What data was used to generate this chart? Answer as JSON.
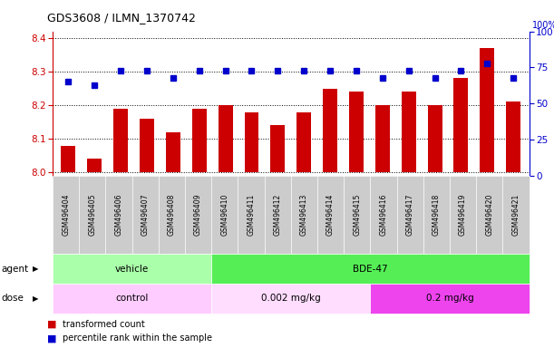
{
  "title": "GDS3608 / ILMN_1370742",
  "samples": [
    "GSM496404",
    "GSM496405",
    "GSM496406",
    "GSM496407",
    "GSM496408",
    "GSM496409",
    "GSM496410",
    "GSM496411",
    "GSM496412",
    "GSM496413",
    "GSM496414",
    "GSM496415",
    "GSM496416",
    "GSM496417",
    "GSM496418",
    "GSM496419",
    "GSM496420",
    "GSM496421"
  ],
  "transformed_counts": [
    8.08,
    8.04,
    8.19,
    8.16,
    8.12,
    8.19,
    8.2,
    8.18,
    8.14,
    8.18,
    8.25,
    8.24,
    8.2,
    8.24,
    8.2,
    8.28,
    8.37,
    8.21
  ],
  "percentile_ranks": [
    65,
    63,
    73,
    73,
    68,
    73,
    73,
    73,
    73,
    73,
    73,
    73,
    68,
    73,
    68,
    73,
    78,
    68
  ],
  "ylim_left": [
    7.99,
    8.42
  ],
  "ylim_right": [
    0,
    100
  ],
  "yticks_left": [
    8.0,
    8.1,
    8.2,
    8.3,
    8.4
  ],
  "yticks_right": [
    0,
    25,
    50,
    75,
    100
  ],
  "bar_color": "#cc0000",
  "dot_color": "#0000cc",
  "bar_baseline": 8.0,
  "agent_groups": [
    {
      "label": "vehicle",
      "start": 0,
      "end": 5,
      "color": "#aaffaa"
    },
    {
      "label": "BDE-47",
      "start": 6,
      "end": 17,
      "color": "#55ee55"
    }
  ],
  "dose_groups": [
    {
      "label": "control",
      "start": 0,
      "end": 5,
      "color": "#ffccff"
    },
    {
      "label": "0.002 mg/kg",
      "start": 6,
      "end": 11,
      "color": "#ffddff"
    },
    {
      "label": "0.2 mg/kg",
      "start": 12,
      "end": 17,
      "color": "#ee44ee"
    }
  ],
  "legend_bar_label": "transformed count",
  "legend_dot_label": "percentile rank within the sample",
  "agent_label": "agent",
  "dose_label": "dose",
  "background_color": "#ffffff",
  "tick_label_bg": "#cccccc",
  "grid_color": "#000000",
  "right_axis_color": "#0000cc",
  "left_axis_color": "#cc0000"
}
